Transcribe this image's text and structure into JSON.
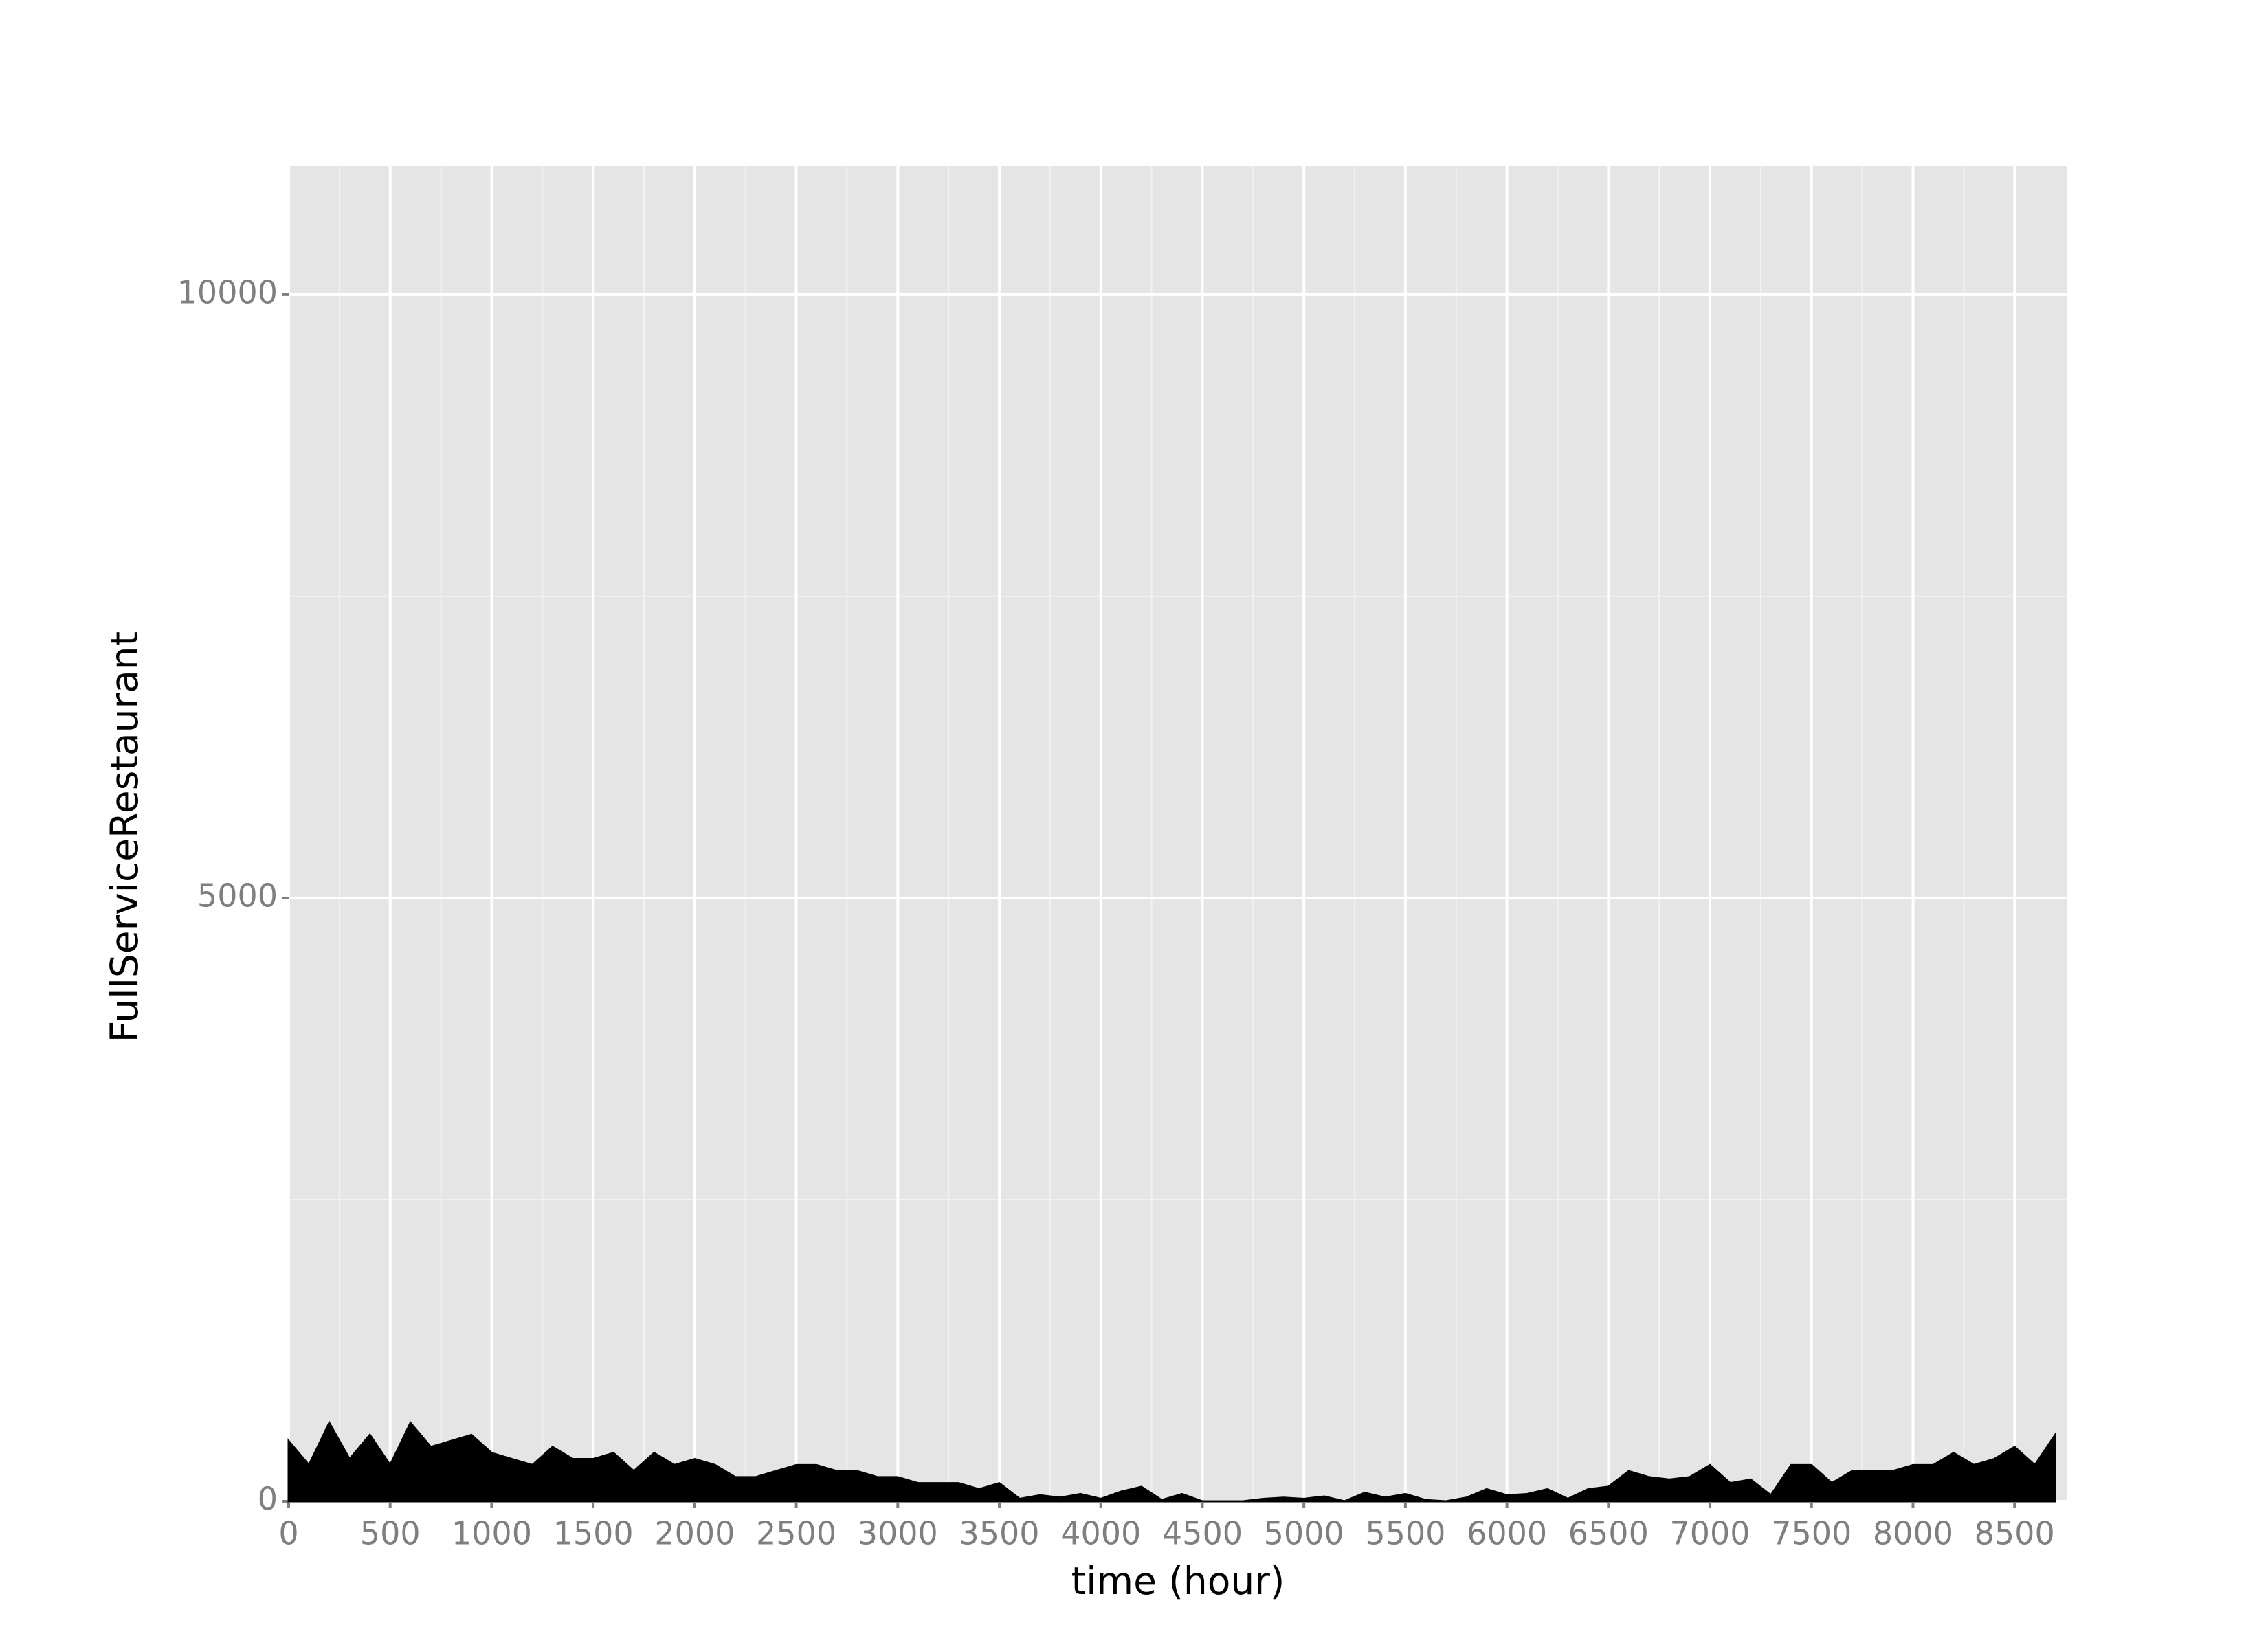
{
  "chart_data": {
    "type": "area",
    "x_label": "time (hour)",
    "y_label": "FullServiceRestaurant",
    "x": [
      0,
      100,
      200,
      300,
      400,
      500,
      600,
      700,
      800,
      900,
      1000,
      1100,
      1200,
      1300,
      1400,
      1500,
      1600,
      1700,
      1800,
      1900,
      2000,
      2100,
      2200,
      2300,
      2400,
      2500,
      2600,
      2700,
      2800,
      2900,
      3000,
      3100,
      3200,
      3300,
      3400,
      3500,
      3600,
      3700,
      3800,
      3900,
      4000,
      4100,
      4200,
      4300,
      4400,
      4500,
      4600,
      4700,
      4800,
      4900,
      5000,
      5100,
      5200,
      5300,
      5400,
      5500,
      5600,
      5700,
      5800,
      5900,
      6000,
      6100,
      6200,
      6300,
      6400,
      6500,
      6600,
      6700,
      6800,
      6900,
      7000,
      7100,
      7200,
      7300,
      7400,
      7500,
      7600,
      7700,
      7800,
      7900,
      8000,
      8100,
      8200,
      8300,
      8400,
      8500,
      8600,
      8700
    ],
    "values": [
      500,
      300,
      650,
      350,
      550,
      300,
      650,
      450,
      500,
      550,
      400,
      350,
      300,
      450,
      350,
      350,
      400,
      250,
      400,
      300,
      350,
      300,
      200,
      200,
      250,
      300,
      300,
      250,
      250,
      200,
      200,
      150,
      150,
      150,
      100,
      150,
      20,
      50,
      30,
      60,
      20,
      80,
      120,
      10,
      60,
      0,
      0,
      0,
      20,
      30,
      20,
      40,
      0,
      70,
      30,
      60,
      10,
      0,
      30,
      100,
      50,
      60,
      100,
      20,
      100,
      120,
      250,
      200,
      180,
      200,
      300,
      150,
      180,
      50,
      300,
      300,
      150,
      250,
      250,
      250,
      300,
      300,
      400,
      300,
      350,
      450,
      300,
      550
    ],
    "color": "#000000",
    "xlim": [
      0,
      8760
    ],
    "ylim": [
      0,
      11070
    ],
    "xticks": [
      0,
      500,
      1000,
      1500,
      2000,
      2500,
      3000,
      3500,
      4000,
      4500,
      5000,
      5500,
      6000,
      6500,
      7000,
      7500,
      8000,
      8500
    ],
    "yticks": [
      0,
      5000,
      10000
    ],
    "grid": true
  }
}
